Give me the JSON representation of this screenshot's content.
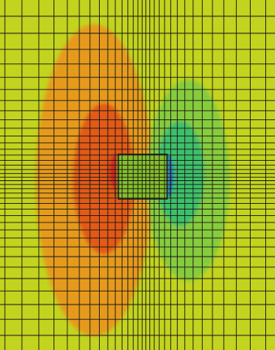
{
  "colors": {
    "background_field": "#c2d41e",
    "high_outer": "#e69a1e",
    "high_mid": "#e35a14",
    "high_peak": "#d8241e",
    "low_outer": "#86cc3c",
    "low_mid": "#3ec06a",
    "low_peak": "#2a4fd8",
    "obstacle_fill": "#84bf2a",
    "grid_line": "#1a1a1a"
  }
}
